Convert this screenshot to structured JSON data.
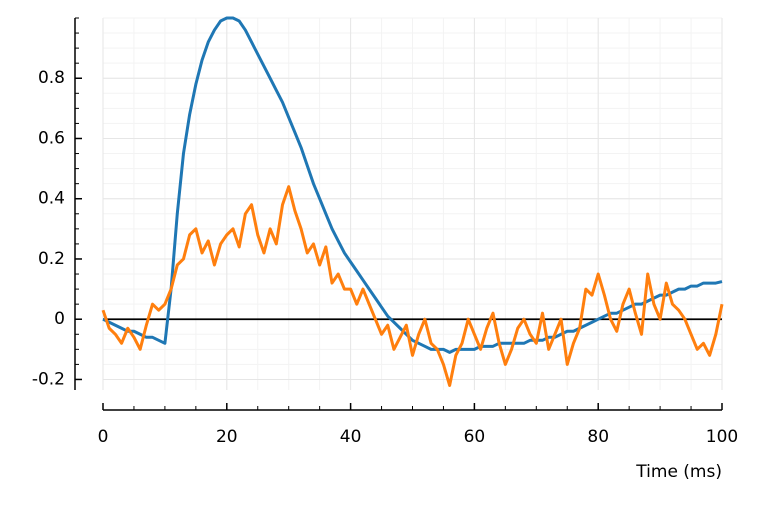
{
  "chart_data": {
    "type": "line",
    "x_label": "Time (ms)",
    "x": [
      0,
      1,
      2,
      3,
      4,
      5,
      6,
      7,
      8,
      9,
      10,
      11,
      12,
      13,
      14,
      15,
      16,
      17,
      18,
      19,
      20,
      21,
      22,
      23,
      24,
      25,
      26,
      27,
      28,
      29,
      30,
      31,
      32,
      33,
      34,
      35,
      36,
      37,
      38,
      39,
      40,
      41,
      42,
      43,
      44,
      45,
      46,
      47,
      48,
      49,
      50,
      51,
      52,
      53,
      54,
      55,
      56,
      57,
      58,
      59,
      60,
      61,
      62,
      63,
      64,
      65,
      66,
      67,
      68,
      69,
      70,
      71,
      72,
      73,
      74,
      75,
      76,
      77,
      78,
      79,
      80,
      81,
      82,
      83,
      84,
      85,
      86,
      87,
      88,
      89,
      90,
      91,
      92,
      93,
      94,
      95,
      96,
      97,
      98,
      99,
      100
    ],
    "series": [
      {
        "color": "#1f77b4",
        "values": [
          0,
          -0.01,
          -0.02,
          -0.03,
          -0.04,
          -0.04,
          -0.05,
          -0.06,
          -0.06,
          -0.07,
          -0.08,
          0.1,
          0.35,
          0.55,
          0.68,
          0.78,
          0.86,
          0.92,
          0.96,
          0.99,
          1.0,
          1.0,
          0.99,
          0.96,
          0.92,
          0.88,
          0.84,
          0.8,
          0.76,
          0.72,
          0.67,
          0.62,
          0.57,
          0.51,
          0.45,
          0.4,
          0.35,
          0.3,
          0.26,
          0.22,
          0.19,
          0.16,
          0.13,
          0.1,
          0.07,
          0.04,
          0.01,
          -0.01,
          -0.03,
          -0.05,
          -0.07,
          -0.08,
          -0.09,
          -0.1,
          -0.1,
          -0.1,
          -0.11,
          -0.1,
          -0.1,
          -0.1,
          -0.1,
          -0.09,
          -0.09,
          -0.09,
          -0.08,
          -0.08,
          -0.08,
          -0.08,
          -0.08,
          -0.07,
          -0.07,
          -0.07,
          -0.06,
          -0.06,
          -0.05,
          -0.04,
          -0.04,
          -0.03,
          -0.02,
          -0.01,
          0.0,
          0.01,
          0.02,
          0.02,
          0.03,
          0.04,
          0.05,
          0.05,
          0.06,
          0.07,
          0.08,
          0.08,
          0.09,
          0.1,
          0.1,
          0.11,
          0.11,
          0.12,
          0.12,
          0.12,
          0.125
        ]
      },
      {
        "color": "#ff7f0e",
        "values": [
          0.03,
          -0.03,
          -0.05,
          -0.08,
          -0.03,
          -0.06,
          -0.1,
          -0.02,
          0.05,
          0.03,
          0.05,
          0.1,
          0.18,
          0.2,
          0.28,
          0.3,
          0.22,
          0.26,
          0.18,
          0.25,
          0.28,
          0.3,
          0.24,
          0.35,
          0.38,
          0.28,
          0.22,
          0.3,
          0.25,
          0.38,
          0.44,
          0.36,
          0.3,
          0.22,
          0.25,
          0.18,
          0.24,
          0.12,
          0.15,
          0.1,
          0.1,
          0.05,
          0.1,
          0.05,
          0.0,
          -0.05,
          -0.02,
          -0.1,
          -0.06,
          -0.02,
          -0.12,
          -0.05,
          0.0,
          -0.08,
          -0.1,
          -0.15,
          -0.22,
          -0.12,
          -0.08,
          0.0,
          -0.05,
          -0.1,
          -0.03,
          0.02,
          -0.08,
          -0.15,
          -0.1,
          -0.03,
          0.0,
          -0.05,
          -0.08,
          0.02,
          -0.1,
          -0.05,
          0.0,
          -0.15,
          -0.08,
          -0.03,
          0.1,
          0.08,
          0.15,
          0.08,
          0.0,
          -0.04,
          0.05,
          0.1,
          0.02,
          -0.05,
          0.15,
          0.05,
          0.0,
          0.12,
          0.05,
          0.03,
          0.0,
          -0.05,
          -0.1,
          -0.08,
          -0.12,
          -0.05,
          0.05
        ]
      }
    ],
    "xlim": [
      0,
      100
    ],
    "xticks": [
      0,
      20,
      40,
      60,
      80,
      100
    ],
    "ylim": [
      -0.235,
      1.0
    ],
    "yticks": [
      -0.2,
      0,
      0.2,
      0.4,
      0.6,
      0.8
    ],
    "grid": true,
    "minor_divisions": 4,
    "zero_line": true
  }
}
